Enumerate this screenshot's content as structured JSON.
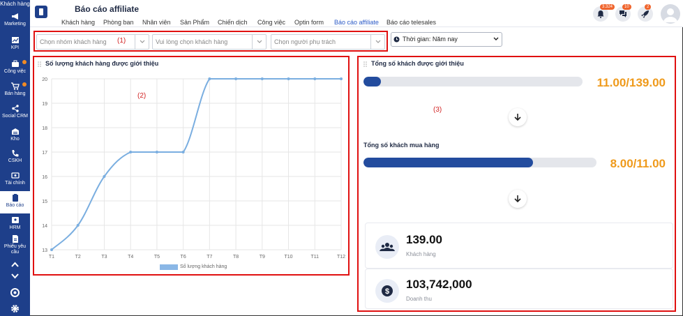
{
  "sidebar": {
    "top_label": "Khách hàng",
    "items": [
      {
        "label": "Marketing",
        "icon": "megaphone-icon"
      },
      {
        "label": "KPI",
        "icon": "chart-icon"
      },
      {
        "label": "Công việc",
        "icon": "briefcase-icon"
      },
      {
        "label": "Bán hàng",
        "icon": "cart-icon"
      },
      {
        "label": "Social CRM",
        "icon": "share-icon"
      },
      {
        "label": "Kho",
        "icon": "warehouse-icon"
      },
      {
        "label": "CSKH",
        "icon": "phone-icon"
      },
      {
        "label": "Tài chính",
        "icon": "money-icon"
      },
      {
        "label": "Báo cáo",
        "icon": "report-icon"
      },
      {
        "label": "HRM",
        "icon": "id-card-icon"
      },
      {
        "label": "Phiếu yêu cầu",
        "icon": "document-icon"
      }
    ]
  },
  "header": {
    "title": "Báo cáo affiliate",
    "tabs": [
      "Khách hàng",
      "Phòng ban",
      "Nhân viên",
      "Sản Phẩm",
      "Chiến dịch",
      "Công việc",
      "Optin form",
      "Báo cáo affiliate",
      "Báo cáo telesales"
    ],
    "active_tab": "Báo cáo affiliate",
    "notifications_badge": "3.324",
    "chat_badge": "10",
    "rocket_badge": "2"
  },
  "filters": {
    "group_placeholder": "Chọn nhóm khách hàng",
    "customer_placeholder": "Vui lòng chọn khách hàng",
    "owner_placeholder": "Chọn người phụ trách",
    "annotation": "(1)",
    "time_label": "Thời gian: Năm nay"
  },
  "left_panel": {
    "title": "Số lượng khách hàng được giới thiệu",
    "annotation": "(2)"
  },
  "chart_data": {
    "type": "line",
    "categories": [
      "T1",
      "T2",
      "T3",
      "T4",
      "T5",
      "T6",
      "T7",
      "T8",
      "T9",
      "T10",
      "T11",
      "T12"
    ],
    "series": [
      {
        "name": "Số lượng khách hàng",
        "values": [
          13,
          14,
          16,
          17,
          17,
          17,
          20,
          20,
          20,
          20,
          20,
          20
        ]
      }
    ],
    "yticks": [
      13,
      14,
      15,
      16,
      17,
      18,
      19,
      20
    ],
    "ylim": [
      13,
      20
    ],
    "grid": true,
    "legend": "bottom",
    "color": "#7aaee0"
  },
  "right_panel": {
    "title": "Tổng số khách được giới thiệu",
    "annotation": "(3)",
    "referred_value": "11.00/139.00",
    "referred_fraction": 0.079,
    "buyers_title": "Tổng số khách mua hàng",
    "buyers_value": "8.00/11.00",
    "buyers_fraction": 0.727,
    "customers_value": "139.00",
    "customers_label": "Khách hàng",
    "revenue_value": "103,742,000",
    "revenue_label": "Doanh thu"
  }
}
